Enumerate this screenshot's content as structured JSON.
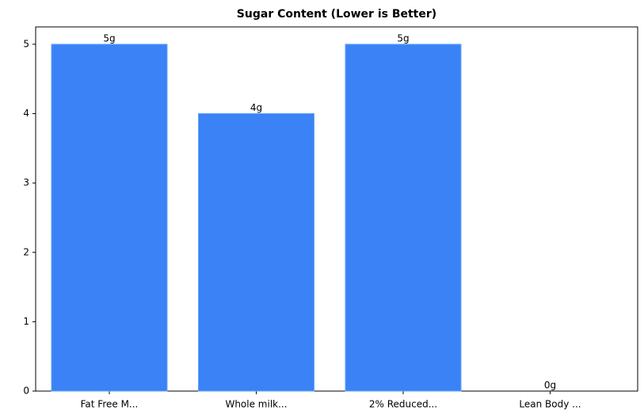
{
  "chart_data": {
    "type": "bar",
    "title": "Sugar Content (Lower is Better)",
    "categories": [
      "Fat Free M...",
      "Whole milk...",
      "2% Reduced...",
      "Lean Body ..."
    ],
    "values": [
      5,
      4,
      5,
      0
    ],
    "value_labels": [
      "5g",
      "4g",
      "5g",
      "0g"
    ],
    "color": "#3b82f6",
    "ylim": [
      0,
      5.25
    ],
    "yticks": [
      0,
      1,
      2,
      3,
      4,
      5
    ],
    "grid": false
  }
}
